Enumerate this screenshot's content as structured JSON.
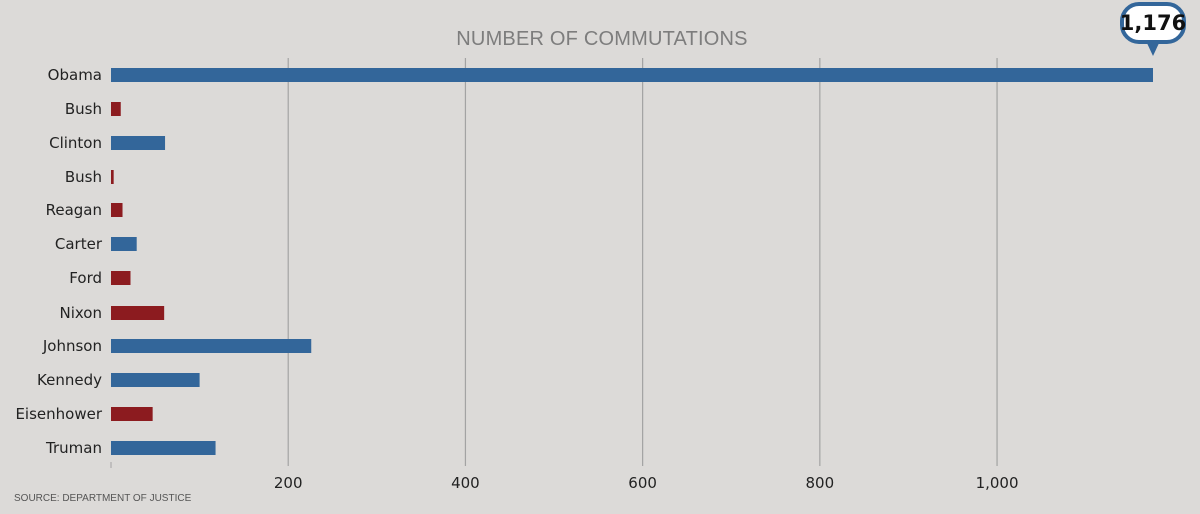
{
  "chart_data": {
    "type": "bar",
    "orientation": "horizontal",
    "title": "NUMBER OF COMMUTATIONS",
    "categories": [
      "Obama",
      "Bush",
      "Clinton",
      "Bush",
      "Reagan",
      "Carter",
      "Ford",
      "Nixon",
      "Johnson",
      "Kennedy",
      "Eisenhower",
      "Truman"
    ],
    "values": [
      1176,
      11,
      61,
      3,
      13,
      29,
      22,
      60,
      226,
      100,
      47,
      118
    ],
    "bar_colors": [
      "#33669a",
      "#8c1b1f",
      "#33669a",
      "#8c1b1f",
      "#8c1b1f",
      "#33669a",
      "#8c1b1f",
      "#8c1b1f",
      "#33669a",
      "#33669a",
      "#8c1b1f",
      "#33669a"
    ],
    "xlim": [
      0,
      1176
    ],
    "xticks": [
      0,
      200,
      400,
      600,
      800,
      1000
    ],
    "xtick_labels": [
      "",
      "200",
      "400",
      "600",
      "800",
      "1,000"
    ],
    "grid": true,
    "callout": {
      "category": "Obama",
      "label": "1,176"
    }
  },
  "source_note": "SOURCE: DEPARTMENT OF JUSTICE",
  "colors": {
    "background": "#dcdad8",
    "democrat": "#33669a",
    "republican": "#8c1b1f",
    "grid": "#a3a3a3",
    "title": "#7d7d7d"
  }
}
